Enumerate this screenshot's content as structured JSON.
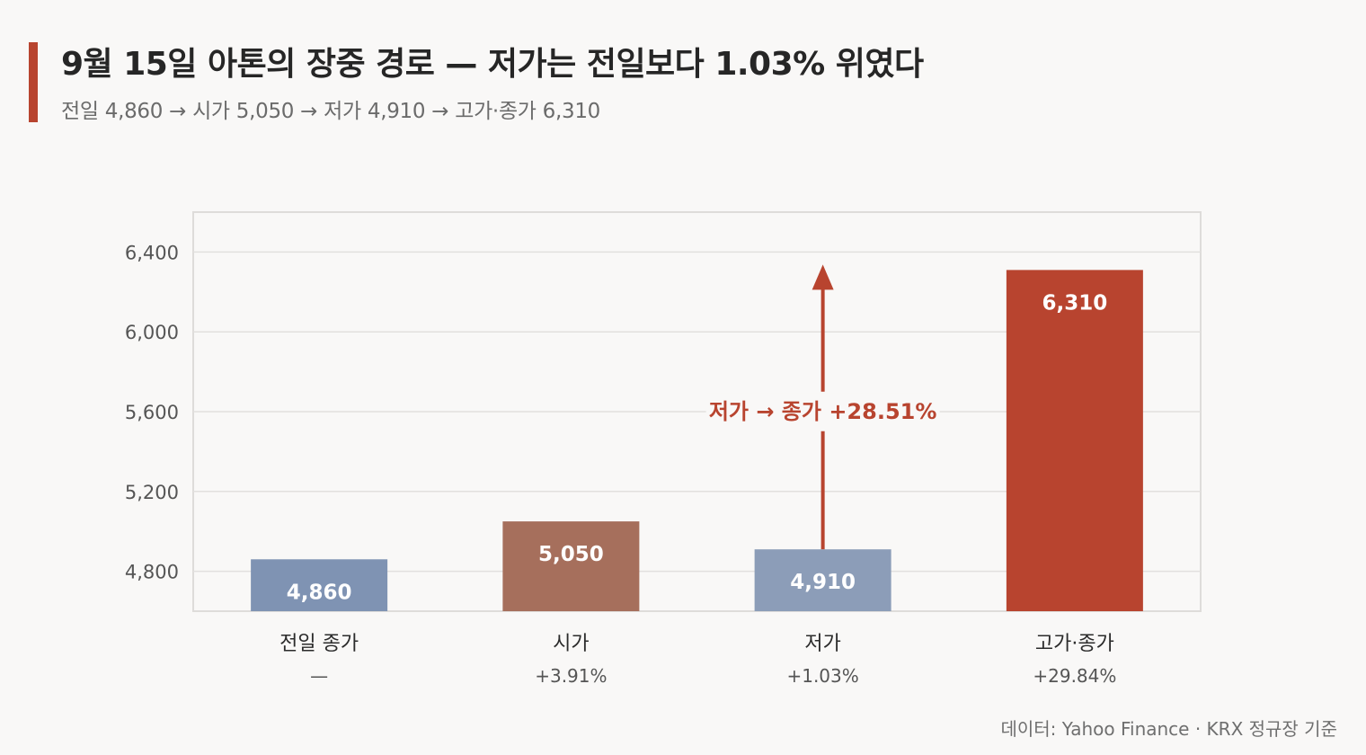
{
  "title": "9월 15일 아톤의 장중 경로 — 저가는 전일보다 1.03% 위였다",
  "subtitle": "전일 4,860 → 시가 5,050 → 저가 4,910 → 고가·종가 6,310",
  "source": "데이터: Yahoo Finance · KRX 정규장 기준",
  "colors": {
    "accent": "#b8442f",
    "prev_close": "#7f93b3",
    "open": "#a66f5c",
    "low": "#8c9db8",
    "high_close": "#b8442f",
    "annotation": "#b8442f",
    "grid": "#e2e0de",
    "frame": "#dedcda"
  },
  "chart_data": {
    "type": "bar",
    "title": "9월 15일 아톤의 장중 경로 — 저가는 전일보다 1.03% 위였다",
    "categories": [
      "전일 종가",
      "시가",
      "저가",
      "고가·종가"
    ],
    "values": [
      4860,
      5050,
      4910,
      6310
    ],
    "value_labels": [
      "4,860",
      "5,050",
      "4,910",
      "6,310"
    ],
    "change_labels": [
      "—",
      "+3.91%",
      "+1.03%",
      "+29.84%"
    ],
    "bar_colors": [
      "#7f93b3",
      "#a66f5c",
      "#8c9db8",
      "#b8442f"
    ],
    "ylim": [
      4600,
      6600
    ],
    "yticks": [
      4800,
      5200,
      5600,
      6000,
      6400
    ],
    "ytick_labels": [
      "4,800",
      "5,200",
      "5,600",
      "6,000",
      "6,400"
    ],
    "grid": true,
    "xlabel": "",
    "ylabel": "",
    "annotation": {
      "text": "저가 → 종가 +28.51%",
      "from_category": "저가",
      "from_value": 4910,
      "to_value": 6310
    }
  }
}
